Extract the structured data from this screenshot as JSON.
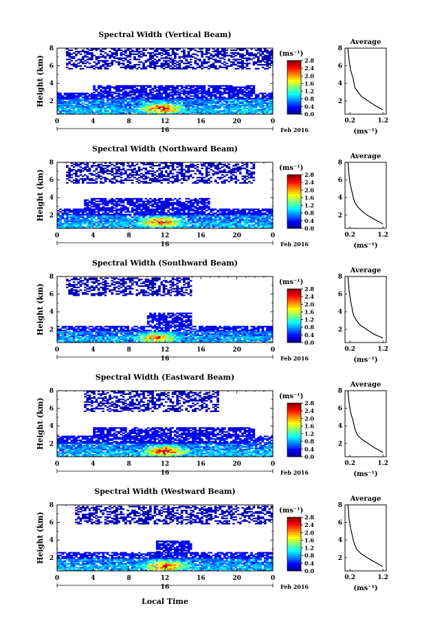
{
  "figure": {
    "shared_xlabel": "Local Time",
    "date_label": "Feb 2016",
    "day_label": "16"
  },
  "chart_data": [
    {
      "type": "heatmap",
      "title": "Spectral Width (Vertical Beam)",
      "ylabel": "Height (km)",
      "xlabel": "",
      "x_ticks": [
        "0",
        "4",
        "8",
        "12",
        "16",
        "20",
        "0"
      ],
      "y_ticks": [
        "2",
        "4",
        "6",
        "8"
      ],
      "xlim": [
        0,
        24
      ],
      "ylim": [
        0.5,
        8
      ],
      "colorbar": {
        "unit": "(ms⁻¹)",
        "ticks": [
          "0.0",
          "0.4",
          "0.8",
          "1.2",
          "1.6",
          "2.0",
          "2.4",
          "2.8"
        ],
        "range": [
          0,
          2.8
        ]
      },
      "layers": [
        {
          "t0": 0,
          "t1": 24,
          "h0": 0.5,
          "h1": 2.2,
          "value": 0.7
        },
        {
          "t0": 0,
          "t1": 24,
          "h0": 2.2,
          "h1": 2.9,
          "value": 0.35
        },
        {
          "t0": 4,
          "t1": 22,
          "h0": 2.9,
          "h1": 3.7,
          "value": 0.3
        },
        {
          "t0": 1,
          "t1": 24,
          "h0": 5.6,
          "h1": 7.9,
          "value": 0.15
        }
      ],
      "hotspot": {
        "t": 11.5,
        "h": 1.1,
        "value": 2.0
      },
      "average": {
        "title": "Average",
        "xlabel": "(ms⁻¹)",
        "x_ticks": [
          "0.2",
          "1.2"
        ],
        "y_ticks": [
          "2",
          "4",
          "6",
          "8"
        ],
        "height": [
          1.0,
          1.5,
          2.0,
          2.5,
          3.0,
          3.5,
          4.0,
          4.5,
          5.0,
          5.5,
          6.0,
          6.5,
          7.0,
          7.5,
          8.0
        ],
        "value": [
          1.2,
          0.95,
          0.75,
          0.55,
          0.45,
          0.35,
          0.32,
          0.3,
          0.26,
          0.22,
          0.2,
          0.18,
          0.16,
          0.15,
          0.14
        ]
      }
    },
    {
      "type": "heatmap",
      "title": "Spectral Width (Northward Beam)",
      "ylabel": "Height (km)",
      "xlabel": "",
      "x_ticks": [
        "0",
        "4",
        "8",
        "12",
        "16",
        "20",
        "0"
      ],
      "y_ticks": [
        "2",
        "4",
        "6",
        "8"
      ],
      "xlim": [
        0,
        24
      ],
      "ylim": [
        0.5,
        8
      ],
      "colorbar": {
        "unit": "(ms⁻¹)",
        "ticks": [
          "0.0",
          "0.4",
          "0.8",
          "1.2",
          "1.6",
          "2.0",
          "2.4",
          "2.8"
        ],
        "range": [
          0,
          2.8
        ]
      },
      "layers": [
        {
          "t0": 0,
          "t1": 24,
          "h0": 0.5,
          "h1": 2.0,
          "value": 0.7
        },
        {
          "t0": 0,
          "t1": 24,
          "h0": 2.0,
          "h1": 2.6,
          "value": 0.35
        },
        {
          "t0": 3,
          "t1": 17,
          "h0": 2.6,
          "h1": 3.8,
          "value": 0.3
        },
        {
          "t0": 1,
          "t1": 22,
          "h0": 5.6,
          "h1": 7.9,
          "value": 0.15
        }
      ],
      "hotspot": {
        "t": 11.5,
        "h": 1.2,
        "value": 1.8
      },
      "average": {
        "title": "Average",
        "xlabel": "(ms⁻¹)",
        "x_ticks": [
          "0.2",
          "1.2"
        ],
        "y_ticks": [
          "2",
          "4",
          "6",
          "8"
        ],
        "height": [
          1.0,
          1.5,
          2.0,
          2.5,
          3.0,
          3.5,
          4.0,
          4.5,
          5.0,
          5.5,
          6.0,
          6.5,
          7.0,
          7.5,
          8.0
        ],
        "value": [
          1.2,
          0.95,
          0.72,
          0.55,
          0.42,
          0.34,
          0.3,
          0.27,
          0.24,
          0.21,
          0.19,
          0.17,
          0.16,
          0.15,
          0.14
        ]
      }
    },
    {
      "type": "heatmap",
      "title": "Spectral Width (Southward Beam)",
      "ylabel": "Height (km)",
      "xlabel": "",
      "x_ticks": [
        "0",
        "4",
        "8",
        "12",
        "16",
        "20",
        "0"
      ],
      "y_ticks": [
        "2",
        "4",
        "6",
        "8"
      ],
      "xlim": [
        0,
        24
      ],
      "ylim": [
        0.5,
        8
      ],
      "colorbar": {
        "unit": "(ms⁻¹)",
        "ticks": [
          "0.0",
          "0.4",
          "0.8",
          "1.2",
          "1.6",
          "2.0",
          "2.4",
          "2.8"
        ],
        "range": [
          0,
          2.8
        ]
      },
      "layers": [
        {
          "t0": 0,
          "t1": 24,
          "h0": 0.5,
          "h1": 1.8,
          "value": 0.65
        },
        {
          "t0": 0,
          "t1": 24,
          "h0": 1.8,
          "h1": 2.4,
          "value": 0.35
        },
        {
          "t0": 10,
          "t1": 15,
          "h0": 2.4,
          "h1": 3.8,
          "value": 0.3
        },
        {
          "t0": 1,
          "t1": 15,
          "h0": 5.8,
          "h1": 7.9,
          "value": 0.15
        }
      ],
      "hotspot": {
        "t": 11,
        "h": 1.0,
        "value": 1.6
      },
      "average": {
        "title": "Average",
        "xlabel": "(ms⁻¹)",
        "x_ticks": [
          "0.2",
          "1.2"
        ],
        "y_ticks": [
          "2",
          "4",
          "6",
          "8"
        ],
        "height": [
          1.0,
          1.5,
          2.0,
          2.5,
          3.0,
          3.5,
          4.0,
          4.5,
          5.0,
          5.5,
          6.0,
          6.5,
          7.0,
          7.5,
          8.0
        ],
        "value": [
          1.2,
          0.9,
          0.7,
          0.5,
          0.4,
          0.32,
          0.28,
          0.26,
          0.23,
          0.21,
          0.19,
          0.17,
          0.16,
          0.15,
          0.14
        ]
      }
    },
    {
      "type": "heatmap",
      "title": "Spectral Width (Eastward Beam)",
      "ylabel": "Height (km)",
      "xlabel": "",
      "x_ticks": [
        "0",
        "4",
        "8",
        "12",
        "16",
        "20",
        "0"
      ],
      "y_ticks": [
        "2",
        "4",
        "6",
        "8"
      ],
      "xlim": [
        0,
        24
      ],
      "ylim": [
        0.5,
        8
      ],
      "colorbar": {
        "unit": "(ms⁻¹)",
        "ticks": [
          "0.0",
          "0.4",
          "0.8",
          "1.2",
          "1.6",
          "2.0",
          "2.4",
          "2.8"
        ],
        "range": [
          0,
          2.8
        ]
      },
      "layers": [
        {
          "t0": 0,
          "t1": 24,
          "h0": 0.5,
          "h1": 2.0,
          "value": 0.7
        },
        {
          "t0": 0,
          "t1": 24,
          "h0": 2.0,
          "h1": 2.8,
          "value": 0.35
        },
        {
          "t0": 4,
          "t1": 22,
          "h0": 2.8,
          "h1": 3.8,
          "value": 0.3
        },
        {
          "t0": 3,
          "t1": 18,
          "h0": 5.6,
          "h1": 7.9,
          "value": 0.15
        }
      ],
      "hotspot": {
        "t": 12,
        "h": 1.1,
        "value": 2.0
      },
      "average": {
        "title": "Average",
        "xlabel": "(ms⁻¹)",
        "x_ticks": [
          "0.2",
          "1.2"
        ],
        "y_ticks": [
          "2",
          "4",
          "6",
          "8"
        ],
        "height": [
          1.0,
          1.5,
          2.0,
          2.5,
          3.0,
          3.5,
          4.0,
          4.5,
          5.0,
          5.5,
          6.0,
          6.5,
          7.0,
          7.5,
          8.0
        ],
        "value": [
          1.2,
          0.95,
          0.75,
          0.55,
          0.42,
          0.36,
          0.33,
          0.3,
          0.26,
          0.22,
          0.2,
          0.18,
          0.16,
          0.15,
          0.14
        ]
      }
    },
    {
      "type": "heatmap",
      "title": "Spectral Width (Westward Beam)",
      "ylabel": "Height (km)",
      "xlabel": "Local Time",
      "x_ticks": [
        "0",
        "4",
        "8",
        "12",
        "16",
        "20",
        "0"
      ],
      "y_ticks": [
        "2",
        "4",
        "6",
        "8"
      ],
      "xlim": [
        0,
        24
      ],
      "ylim": [
        0.5,
        8
      ],
      "colorbar": {
        "unit": "(ms⁻¹)",
        "ticks": [
          "0.0",
          "0.4",
          "0.8",
          "1.2",
          "1.6",
          "2.0",
          "2.4",
          "2.8"
        ],
        "range": [
          0,
          2.8
        ]
      },
      "layers": [
        {
          "t0": 0,
          "t1": 24,
          "h0": 0.5,
          "h1": 1.9,
          "value": 0.7
        },
        {
          "t0": 0,
          "t1": 24,
          "h0": 1.9,
          "h1": 2.6,
          "value": 0.35
        },
        {
          "t0": 11,
          "t1": 15,
          "h0": 2.6,
          "h1": 3.8,
          "value": 0.3
        },
        {
          "t0": 2,
          "t1": 24,
          "h0": 5.8,
          "h1": 7.9,
          "value": 0.15
        }
      ],
      "hotspot": {
        "t": 12,
        "h": 1.0,
        "value": 1.9
      },
      "average": {
        "title": "Average",
        "xlabel": "(ms⁻¹)",
        "x_ticks": [
          "0.2",
          "1.2"
        ],
        "y_ticks": [
          "2",
          "4",
          "6",
          "8"
        ],
        "height": [
          1.0,
          1.5,
          2.0,
          2.5,
          3.0,
          3.5,
          4.0,
          4.5,
          5.0,
          5.5,
          6.0,
          6.5,
          7.0,
          7.5,
          8.0
        ],
        "value": [
          1.2,
          0.95,
          0.72,
          0.52,
          0.4,
          0.34,
          0.3,
          0.27,
          0.24,
          0.21,
          0.19,
          0.17,
          0.16,
          0.15,
          0.14
        ]
      }
    }
  ],
  "colors": {
    "colormap": [
      "#00007f",
      "#0000ff",
      "#007fff",
      "#00ffff",
      "#7fff7f",
      "#ffff00",
      "#ff7f00",
      "#ff0000",
      "#7f0000"
    ],
    "background": "#ffffff",
    "axis": "#000000"
  }
}
